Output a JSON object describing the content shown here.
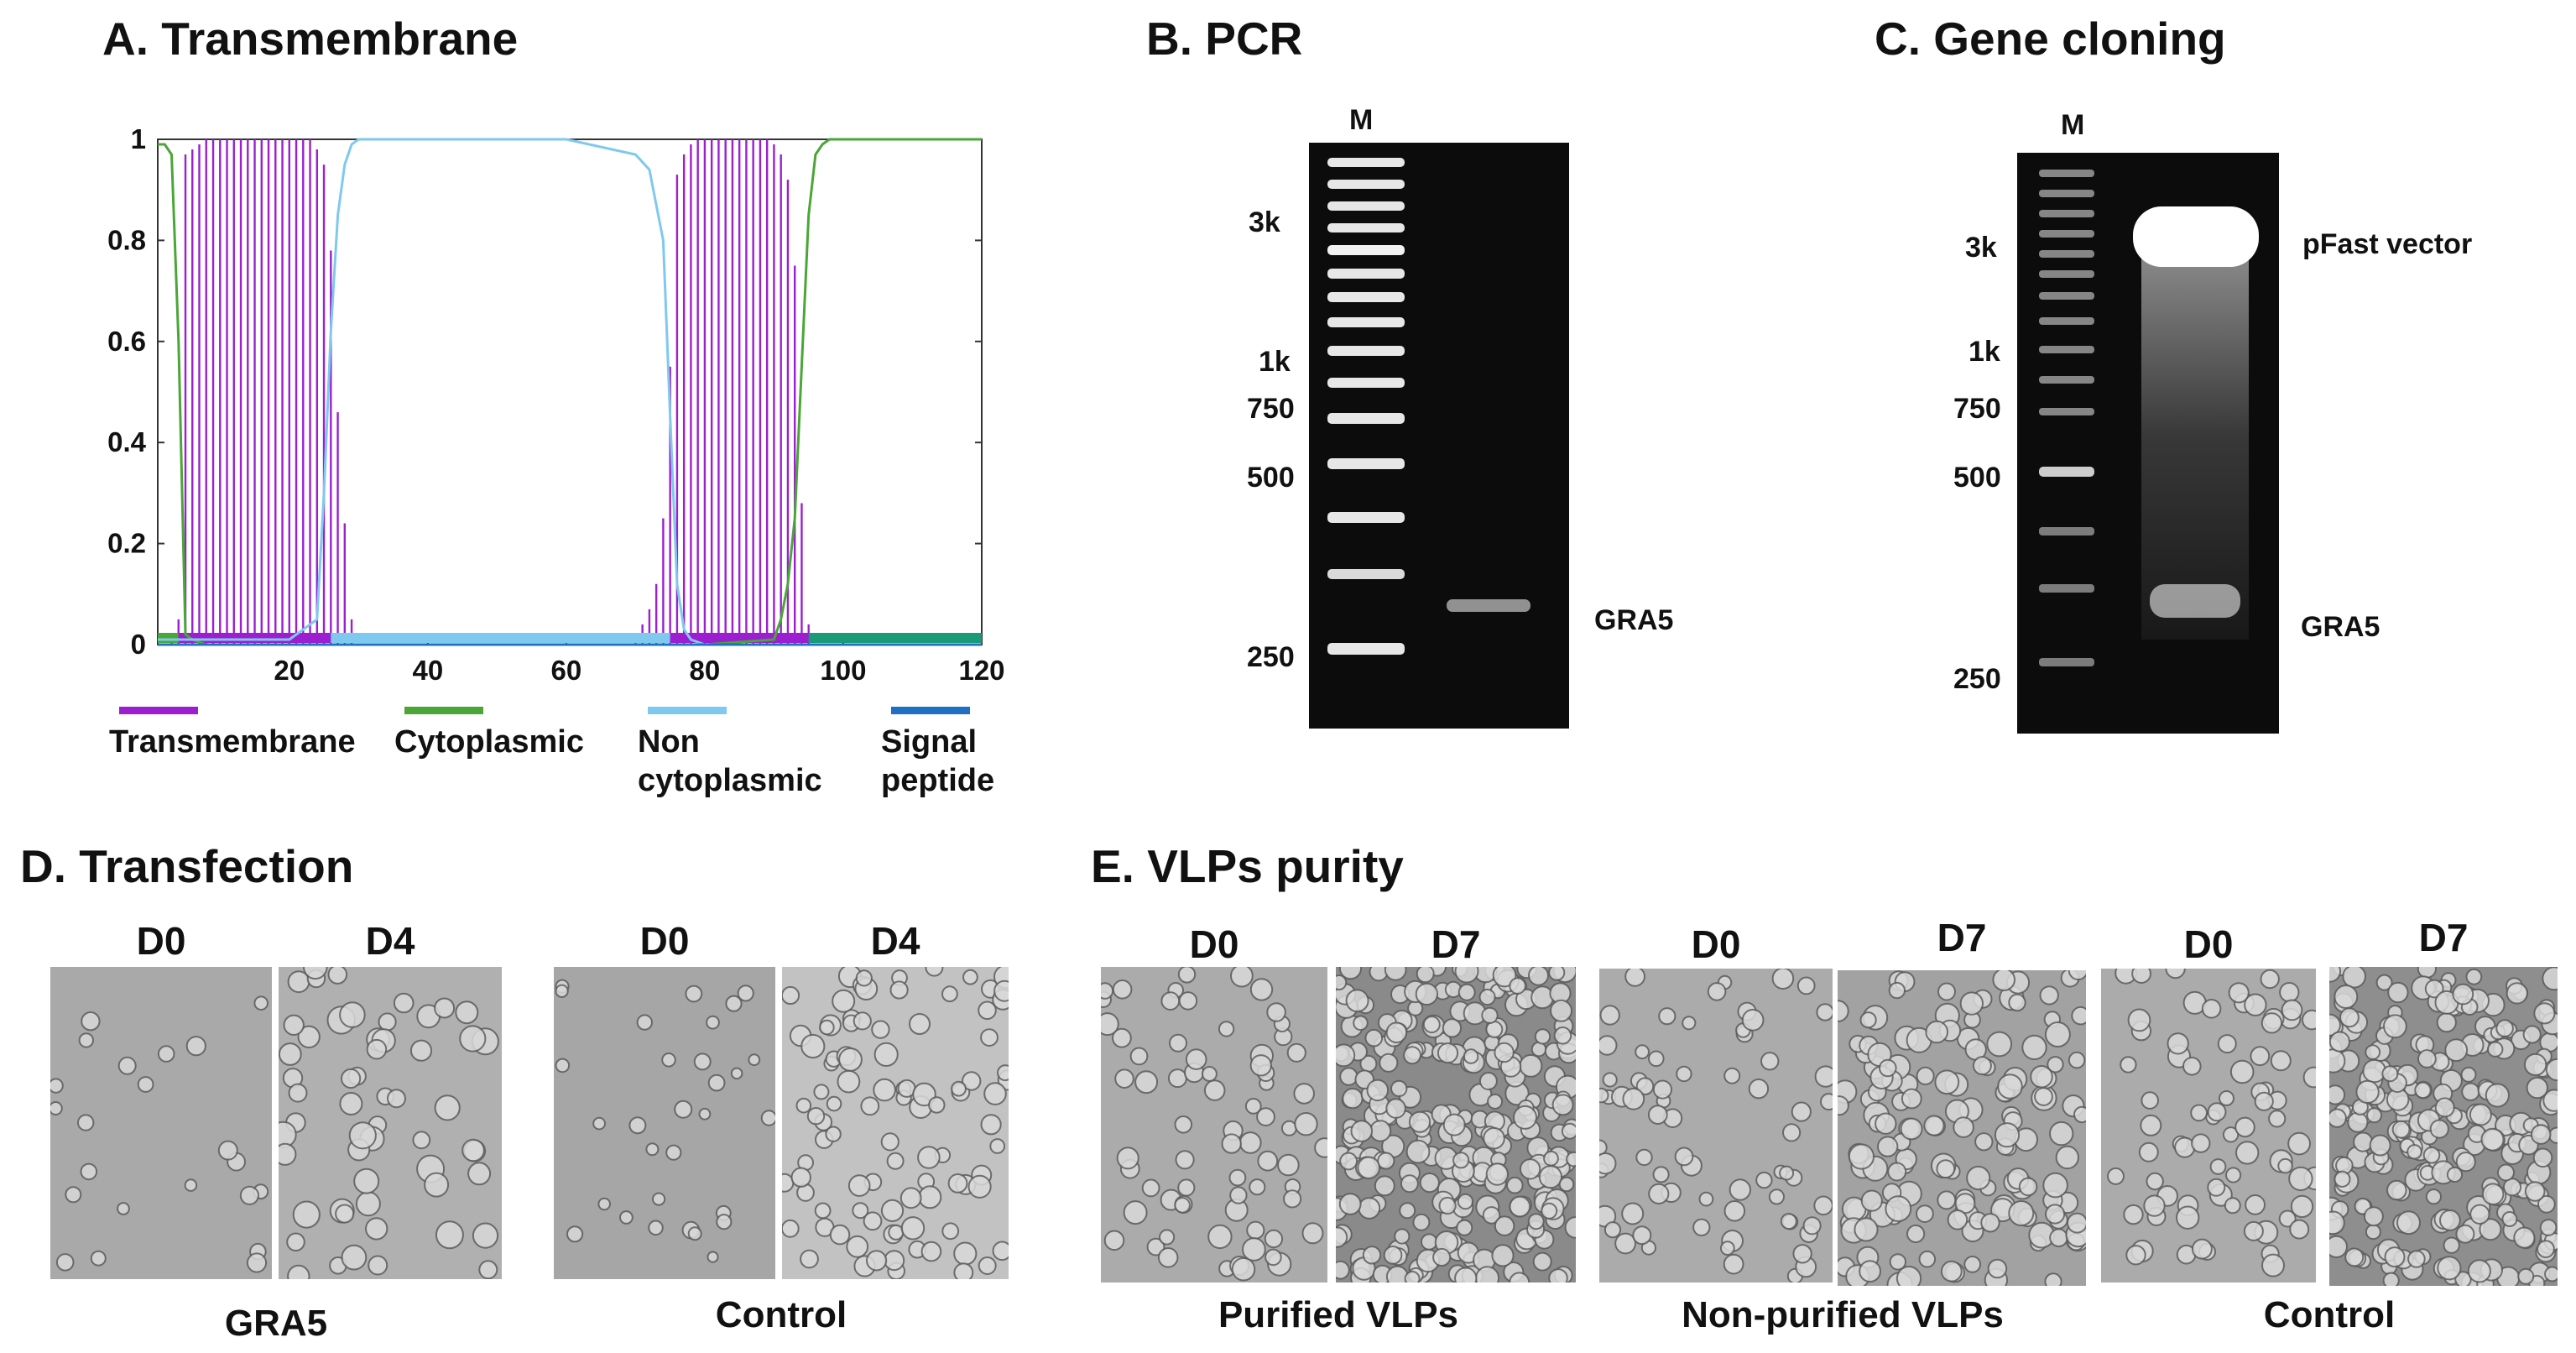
{
  "panels": {
    "a": {
      "title": "A. Transmembrane",
      "y_ticks": [
        "1",
        "0.8",
        "0.6",
        "0.4",
        "0.2",
        "0"
      ],
      "x_ticks": [
        "20",
        "40",
        "60",
        "80",
        "100",
        "120"
      ],
      "legend": [
        {
          "label": "Transmembrane",
          "color": "#9b1fd1"
        },
        {
          "label": "Cytoplasmic",
          "color": "#4aa636"
        },
        {
          "label": "Non cytoplasmic",
          "color": "#7fc9ee"
        },
        {
          "label": "Signal peptide",
          "color": "#1f6fc4"
        }
      ]
    },
    "b": {
      "title": "B. PCR",
      "lane_label": "M",
      "ladder_labels": [
        "3k",
        "1k",
        "750",
        "500",
        "250"
      ],
      "band_label": "GRA5"
    },
    "c": {
      "title": "C. Gene cloning",
      "lane_label": "M",
      "ladder_labels": [
        "3k",
        "1k",
        "750",
        "500",
        "250"
      ],
      "band_labels": [
        "pFast vector",
        "GRA5"
      ]
    },
    "d": {
      "title": "D. Transfection",
      "day_labels": [
        "D0",
        "D4",
        "D0",
        "D4"
      ],
      "group_labels": [
        "GRA5",
        "Control"
      ]
    },
    "e": {
      "title": "E. VLPs purity",
      "day_labels": [
        "D0",
        "D7",
        "D0",
        "D7",
        "D0",
        "D7"
      ],
      "group_labels": [
        "Purified VLPs",
        "Non-purified VLPs",
        "Control"
      ]
    }
  },
  "chart_data": {
    "type": "line",
    "title": "A. Transmembrane",
    "xlabel": "",
    "ylabel": "",
    "xlim": [
      1,
      120
    ],
    "ylim": [
      0,
      1
    ],
    "x_ticks": [
      20,
      40,
      60,
      80,
      100,
      120
    ],
    "y_ticks": [
      0,
      0.2,
      0.4,
      0.6,
      0.8,
      1
    ],
    "series": [
      {
        "name": "Transmembrane",
        "color": "#9b1fd1",
        "x": [
          3,
          4,
          5,
          6,
          7,
          8,
          9,
          10,
          11,
          12,
          13,
          14,
          15,
          16,
          17,
          18,
          19,
          20,
          21,
          22,
          23,
          24,
          25,
          26,
          27,
          28,
          29,
          70,
          71,
          72,
          73,
          74,
          75,
          76,
          77,
          78,
          79,
          80,
          81,
          82,
          83,
          84,
          85,
          86,
          87,
          88,
          89,
          90,
          91,
          92,
          93,
          94,
          95
        ],
        "y": [
          0.01,
          0.05,
          0.97,
          0.98,
          0.99,
          1,
          1,
          1,
          1,
          1,
          1,
          1,
          1,
          1,
          1,
          1,
          1,
          1,
          1,
          1,
          1,
          0.98,
          0.95,
          0.78,
          0.46,
          0.24,
          0.05,
          0.02,
          0.04,
          0.07,
          0.12,
          0.25,
          0.55,
          0.93,
          0.97,
          0.99,
          1,
          1,
          1,
          1,
          1,
          1,
          1,
          1,
          1,
          1,
          1,
          0.99,
          0.97,
          0.92,
          0.75,
          0.28,
          0.04
        ]
      },
      {
        "name": "Cytoplasmic",
        "color": "#4aa636",
        "x": [
          1,
          2,
          3,
          4,
          5,
          6,
          7,
          8,
          10,
          20,
          27,
          40,
          60,
          80,
          90,
          91,
          92,
          93,
          94,
          95,
          96,
          97,
          98,
          100,
          110,
          120
        ],
        "y": [
          0.99,
          0.99,
          0.97,
          0.6,
          0.02,
          0.01,
          0.005,
          0.0,
          0.0,
          0.0,
          0.0,
          0.0,
          0.0,
          0.0,
          0.01,
          0.05,
          0.12,
          0.25,
          0.55,
          0.85,
          0.97,
          0.99,
          1.0,
          1.0,
          1.0,
          1.0
        ]
      },
      {
        "name": "Non cytoplasmic",
        "color": "#7fc9ee",
        "x": [
          1,
          5,
          20,
          24,
          25,
          26,
          27,
          28,
          29,
          30,
          35,
          40,
          50,
          60,
          70,
          72,
          74,
          75,
          76,
          77,
          78,
          80,
          85,
          95,
          110,
          120
        ],
        "y": [
          0.01,
          0.01,
          0.01,
          0.05,
          0.3,
          0.62,
          0.85,
          0.95,
          0.99,
          1.0,
          1.0,
          1.0,
          1.0,
          1.0,
          0.97,
          0.94,
          0.8,
          0.45,
          0.12,
          0.03,
          0.01,
          0.0,
          0.0,
          0.0,
          0.0,
          0.0
        ]
      },
      {
        "name": "Signal peptide",
        "color": "#1f6fc4",
        "x": [
          1,
          120
        ],
        "y": [
          0.0,
          0.0
        ]
      }
    ],
    "topology_bar": [
      {
        "from": 1,
        "to": 4,
        "label": "Cytoplasmic",
        "color": "#4aa636"
      },
      {
        "from": 4,
        "to": 26,
        "label": "Transmembrane",
        "color": "#9b1fd1"
      },
      {
        "from": 26,
        "to": 75,
        "label": "Non cytoplasmic",
        "color": "#7fc9ee"
      },
      {
        "from": 75,
        "to": 95,
        "label": "Transmembrane",
        "color": "#9b1fd1"
      },
      {
        "from": 95,
        "to": 120,
        "label": "Cytoplasmic",
        "color": "#1b9a7a"
      }
    ]
  }
}
